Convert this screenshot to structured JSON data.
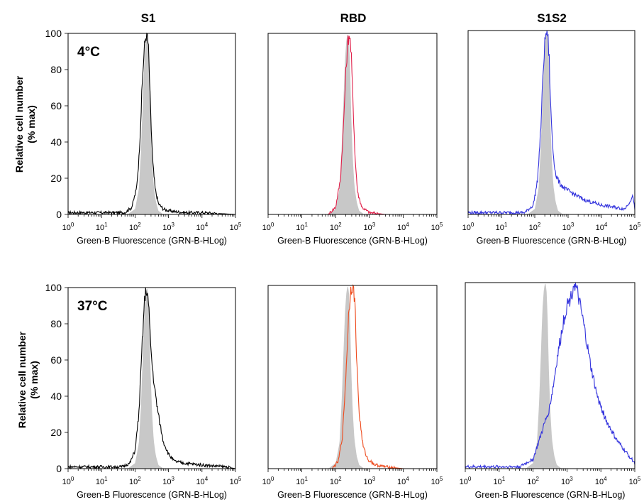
{
  "column_titles": [
    "S1",
    "RBD",
    "S1S2"
  ],
  "ylabel_line1": "Relative cell number",
  "ylabel_line2": "(% max)",
  "row_labels": [
    "4°C",
    "37°C"
  ],
  "colors": {
    "control_fill": "#c8c8c8",
    "S1": "#000000",
    "RBD_4C": "#e0204a",
    "RBD_37C": "#ee4a1c",
    "S1S2": "#3333dd"
  },
  "chart_data": [
    {
      "type": "area",
      "panel": "S1, 4°C",
      "xlabel": "Green-B Fluorescence (GRN-B-HLog)",
      "ylabel": "Relative cell number (% max)",
      "xscale": "log",
      "xlim": [
        1,
        100000
      ],
      "ylim": [
        0,
        100
      ],
      "xticks": [
        "10^0",
        "10^1",
        "10^2",
        "10^3",
        "10^4",
        "10^5"
      ],
      "yticks": [
        0,
        20,
        40,
        60,
        80,
        100
      ],
      "annotation": "4°C",
      "series": [
        {
          "role": "control",
          "x": [
            60,
            100,
            130,
            150,
            170,
            190,
            210,
            230,
            250,
            270,
            290,
            320,
            360,
            420,
            500,
            700
          ],
          "y": [
            0,
            3,
            14,
            35,
            62,
            86,
            97,
            100,
            96,
            80,
            55,
            32,
            16,
            7,
            2,
            0
          ]
        },
        {
          "role": "sample",
          "x": [
            50,
            80,
            110,
            130,
            150,
            170,
            190,
            210,
            230,
            250,
            270,
            300,
            340,
            400,
            500,
            700,
            1000,
            3000,
            10000,
            100000
          ],
          "y": [
            1,
            4,
            14,
            30,
            55,
            78,
            92,
            99,
            100,
            92,
            75,
            50,
            28,
            14,
            6,
            3,
            2,
            1,
            1,
            0
          ]
        }
      ]
    },
    {
      "type": "area",
      "panel": "RBD, 4°C",
      "xlabel": "Green-B Fluorescence (GRN-B-HLog)",
      "xscale": "log",
      "xlim": [
        1,
        100000
      ],
      "ylim": [
        0,
        100
      ],
      "xticks": [
        "10^0",
        "10^1",
        "10^2",
        "10^3",
        "10^4",
        "10^5"
      ],
      "series": [
        {
          "role": "control",
          "x": [
            60,
            100,
            130,
            150,
            170,
            190,
            210,
            230,
            250,
            270,
            290,
            320,
            360,
            420,
            500,
            700
          ],
          "y": [
            0,
            3,
            14,
            35,
            62,
            86,
            97,
            100,
            96,
            80,
            55,
            32,
            16,
            7,
            2,
            0
          ]
        },
        {
          "role": "sample",
          "x": [
            60,
            100,
            140,
            170,
            200,
            230,
            260,
            290,
            330,
            380,
            450,
            600,
            1000,
            3000,
            100000
          ],
          "y": [
            0,
            4,
            20,
            48,
            78,
            96,
            100,
            88,
            60,
            30,
            12,
            4,
            1,
            0,
            0
          ]
        }
      ]
    },
    {
      "type": "area",
      "panel": "S1S2, 4°C",
      "xlabel": "Green-B Fluorescence (GRN-B-HLog)",
      "xscale": "log",
      "xlim": [
        1,
        100000
      ],
      "ylim": [
        0,
        100
      ],
      "xticks": [
        "10^0",
        "10^1",
        "10^2",
        "10^3",
        "10^4",
        "10^5"
      ],
      "series": [
        {
          "role": "control",
          "x": [
            60,
            100,
            130,
            150,
            170,
            190,
            210,
            230,
            250,
            270,
            290,
            320,
            360,
            420,
            500,
            700
          ],
          "y": [
            0,
            3,
            14,
            35,
            62,
            86,
            97,
            100,
            96,
            80,
            55,
            32,
            16,
            7,
            2,
            0
          ]
        },
        {
          "role": "sample",
          "x": [
            50,
            90,
            120,
            150,
            180,
            210,
            240,
            270,
            300,
            350,
            420,
            550,
            800,
            1500,
            3000,
            10000,
            50000,
            90000,
            100000
          ],
          "y": [
            1,
            5,
            18,
            45,
            80,
            98,
            100,
            85,
            58,
            35,
            22,
            17,
            14,
            11,
            8,
            5,
            3,
            10,
            2
          ]
        }
      ]
    },
    {
      "type": "area",
      "panel": "S1, 37°C",
      "xlabel": "Green-B Fluorescence (GRN-B-HLog)",
      "ylabel": "Relative cell number (% max)",
      "xscale": "log",
      "xlim": [
        1,
        100000
      ],
      "ylim": [
        0,
        100
      ],
      "xticks": [
        "10^0",
        "10^1",
        "10^2",
        "10^3",
        "10^4",
        "10^5"
      ],
      "yticks": [
        0,
        20,
        40,
        60,
        80,
        100
      ],
      "annotation": "37°C",
      "series": [
        {
          "role": "control",
          "x": [
            60,
            100,
            130,
            150,
            170,
            190,
            210,
            230,
            250,
            270,
            290,
            320,
            360,
            420,
            500,
            700
          ],
          "y": [
            0,
            3,
            14,
            35,
            62,
            86,
            97,
            100,
            96,
            80,
            55,
            32,
            16,
            7,
            2,
            0
          ]
        },
        {
          "role": "sample",
          "x": [
            40,
            70,
            100,
            130,
            160,
            190,
            220,
            250,
            280,
            320,
            380,
            450,
            550,
            700,
            1000,
            1500,
            3000,
            10000,
            50000,
            100000
          ],
          "y": [
            1,
            3,
            10,
            30,
            65,
            92,
            100,
            92,
            75,
            58,
            45,
            35,
            25,
            15,
            8,
            4,
            3,
            2,
            1,
            0
          ]
        }
      ]
    },
    {
      "type": "area",
      "panel": "RBD, 37°C",
      "xlabel": "Green-B Fluorescence (GRN-B-HLog)",
      "xscale": "log",
      "xlim": [
        1,
        100000
      ],
      "ylim": [
        0,
        100
      ],
      "xticks": [
        "10^0",
        "10^1",
        "10^2",
        "10^3",
        "10^4",
        "10^5"
      ],
      "series": [
        {
          "role": "control",
          "x": [
            60,
            100,
            130,
            150,
            170,
            190,
            210,
            230,
            250,
            270,
            290,
            320,
            360,
            420,
            500,
            700
          ],
          "y": [
            0,
            3,
            14,
            35,
            62,
            86,
            97,
            100,
            96,
            80,
            55,
            32,
            16,
            7,
            2,
            0
          ]
        },
        {
          "role": "sample",
          "x": [
            80,
            120,
            160,
            200,
            240,
            280,
            320,
            370,
            420,
            500,
            650,
            900,
            1500,
            3000,
            10000
          ],
          "y": [
            0,
            4,
            18,
            50,
            82,
            98,
            100,
            92,
            60,
            30,
            12,
            5,
            2,
            1,
            0
          ]
        }
      ]
    },
    {
      "type": "area",
      "panel": "S1S2, 37°C",
      "xlabel": "Green-B Fluorescence (GRN-B-HLog)",
      "xscale": "log",
      "xlim": [
        1,
        100000
      ],
      "ylim": [
        0,
        100
      ],
      "xticks": [
        "10^0",
        "10^1",
        "10^2",
        "10^3",
        "10^4",
        "10^5"
      ],
      "series": [
        {
          "role": "control",
          "x": [
            60,
            100,
            130,
            150,
            170,
            190,
            210,
            230,
            250,
            270,
            290,
            320,
            360,
            420,
            500,
            700
          ],
          "y": [
            0,
            3,
            14,
            35,
            62,
            86,
            97,
            100,
            96,
            80,
            55,
            32,
            16,
            7,
            2,
            0
          ]
        },
        {
          "role": "sample",
          "x": [
            40,
            100,
            200,
            300,
            400,
            500,
            650,
            800,
            1000,
            1300,
            1600,
            2000,
            2600,
            3500,
            5000,
            8000,
            15000,
            30000,
            60000,
            100000
          ],
          "y": [
            1,
            5,
            22,
            32,
            45,
            58,
            70,
            80,
            88,
            92,
            100,
            95,
            85,
            72,
            55,
            38,
            25,
            15,
            8,
            3
          ]
        }
      ]
    }
  ]
}
